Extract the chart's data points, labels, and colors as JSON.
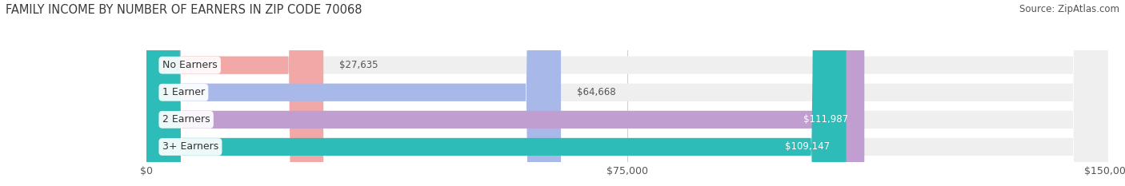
{
  "title": "FAMILY INCOME BY NUMBER OF EARNERS IN ZIP CODE 70068",
  "source": "Source: ZipAtlas.com",
  "categories": [
    "No Earners",
    "1 Earner",
    "2 Earners",
    "3+ Earners"
  ],
  "values": [
    27635,
    64668,
    111987,
    109147
  ],
  "bar_colors": [
    "#f2a8a6",
    "#a8b8e8",
    "#c09ecf",
    "#2dbcb8"
  ],
  "label_colors": [
    "#555555",
    "#555555",
    "#ffffff",
    "#ffffff"
  ],
  "value_labels": [
    "$27,635",
    "$64,668",
    "$111,987",
    "$109,147"
  ],
  "xlim": [
    0,
    150000
  ],
  "xticks": [
    0,
    75000,
    150000
  ],
  "xtick_labels": [
    "$0",
    "$75,000",
    "$150,000"
  ],
  "background_color": "#ffffff",
  "bar_background_color": "#efefef",
  "title_fontsize": 10.5,
  "source_fontsize": 8.5,
  "tick_fontsize": 9,
  "label_fontsize": 9,
  "value_fontsize": 8.5,
  "bar_height": 0.65
}
